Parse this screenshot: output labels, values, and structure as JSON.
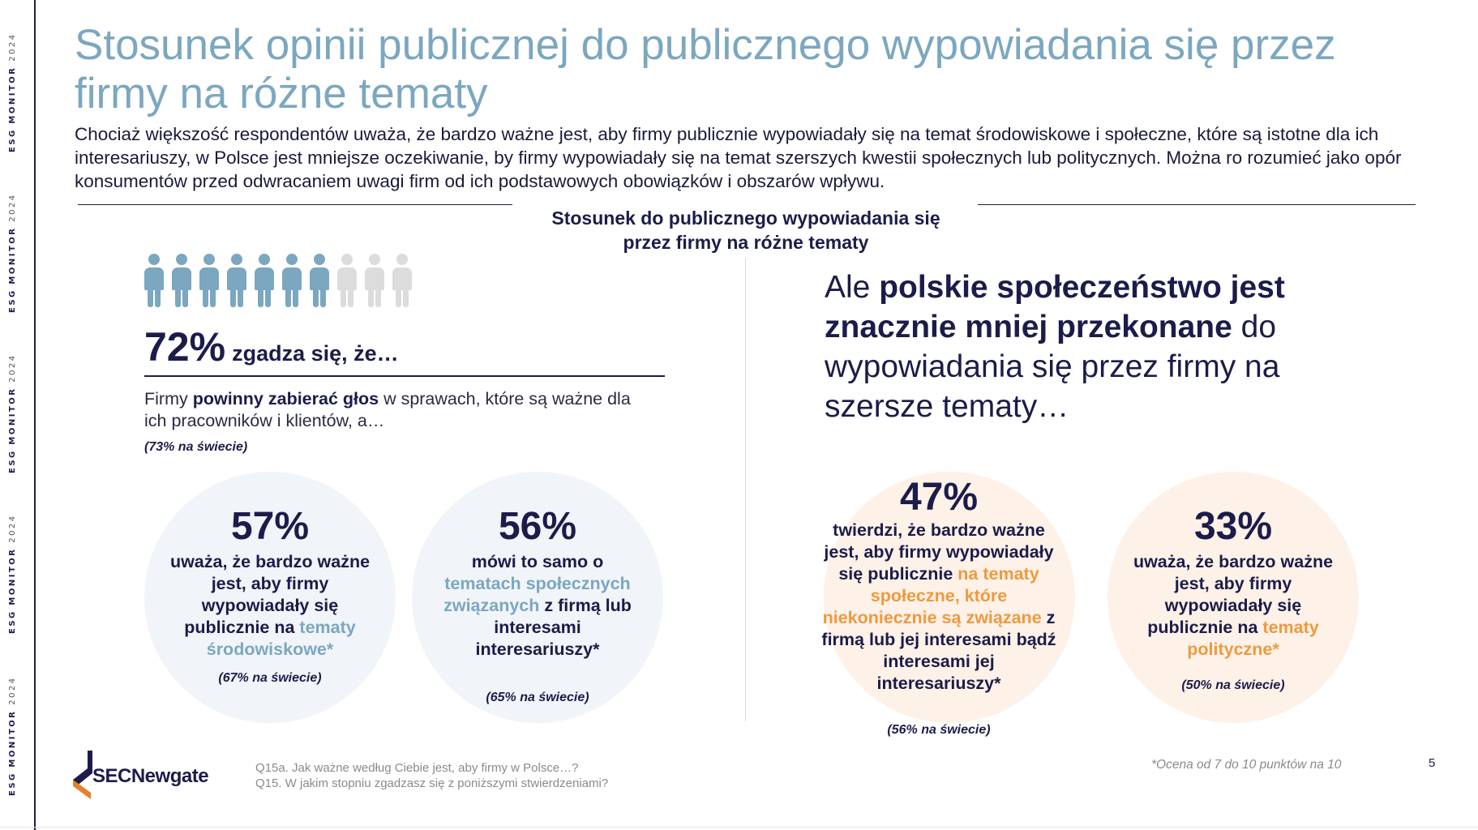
{
  "sidebar": {
    "brand": "ESG",
    "word": "MONITOR",
    "year": "2024"
  },
  "title": "Stosunek opinii publicznej do publicznego wypowiadania się przez firmy na różne tematy",
  "intro": "Chociaż większość respondentów uważa, że bardzo ważne jest, aby firmy publicznie wypowiadały się na temat środowiskowe i społeczne, które są istotne dla ich interesariuszy, w Polsce jest mniejsze oczekiwanie, by firmy wypowiadały się na temat szerszych kwestii społecznych lub politycznych. Można ro rozumieć jako opór konsumentów przed odwracaniem uwagi firm od ich podstawowych obowiązków i obszarów wpływu.",
  "section_heading": {
    "line1": "Stosunek do publicznego wypowiadania się",
    "line2": "przez firmy na różne tematy"
  },
  "left": {
    "icon_array": {
      "filled": 7,
      "total": 10,
      "filled_color": "#7ba7c0",
      "empty_color": "#dcdcdc"
    },
    "stat_value": "72%",
    "stat_label": "zgadza się, że…",
    "statement_pre": "Firmy ",
    "statement_bold": "powinny zabierać głos",
    "statement_post": " w sprawach, które są ważne dla ich pracowników i klientów, a…",
    "world": "(73% na świecie)",
    "circle1": {
      "value": "57%",
      "text_pre": "uważa, że bardzo ważne jest, aby firmy wypowiadały się publicznie na ",
      "text_highlight": "tematy środowiskowe*",
      "text_post": "",
      "world": "(67% na świecie)"
    },
    "circle2": {
      "value": "56%",
      "text_pre": "mówi to samo o ",
      "text_highlight": "tematach społecznych związanych",
      "text_post": " z firmą lub interesami interesariuszy*",
      "world": "(65% na świecie)"
    }
  },
  "right": {
    "headline_pre": "Ale ",
    "headline_bold": "polskie społeczeństwo jest znacznie mniej przekonane",
    "headline_post": " do wypowiadania się przez firmy na szersze tematy…",
    "circle1": {
      "value": "47%",
      "text_pre": "twierdzi, że bardzo ważne jest, aby firmy wypowiadały się publicznie ",
      "text_highlight": "na tematy społeczne, które niekoniecznie są związane",
      "text_post": " z firmą lub jej interesami bądź interesami jej interesariuszy*",
      "world": "(56% na świecie)"
    },
    "circle2": {
      "value": "33%",
      "text_pre": "uważa, że bardzo ważne jest, aby firmy wypowiadały się publicznie na ",
      "text_highlight": "tematy polityczne*",
      "text_post": "",
      "world": "(50% na świecie)"
    }
  },
  "colors": {
    "navy": "#1c1c4a",
    "accent_blue": "#7ba7c0",
    "accent_orange": "#ee9a3f",
    "logo_orange": "#e8802a"
  },
  "footer": {
    "logo": "SECNewgate",
    "q1": "Q15a. Jak ważne według Ciebie jest, aby firmy w Polsce…?",
    "q2": "Q15. W jakim stopniu zgadzasz się z poniższymi stwierdzeniami?",
    "footnote": "*Ocena od 7 do 10 punktów na 10",
    "page": "5"
  }
}
